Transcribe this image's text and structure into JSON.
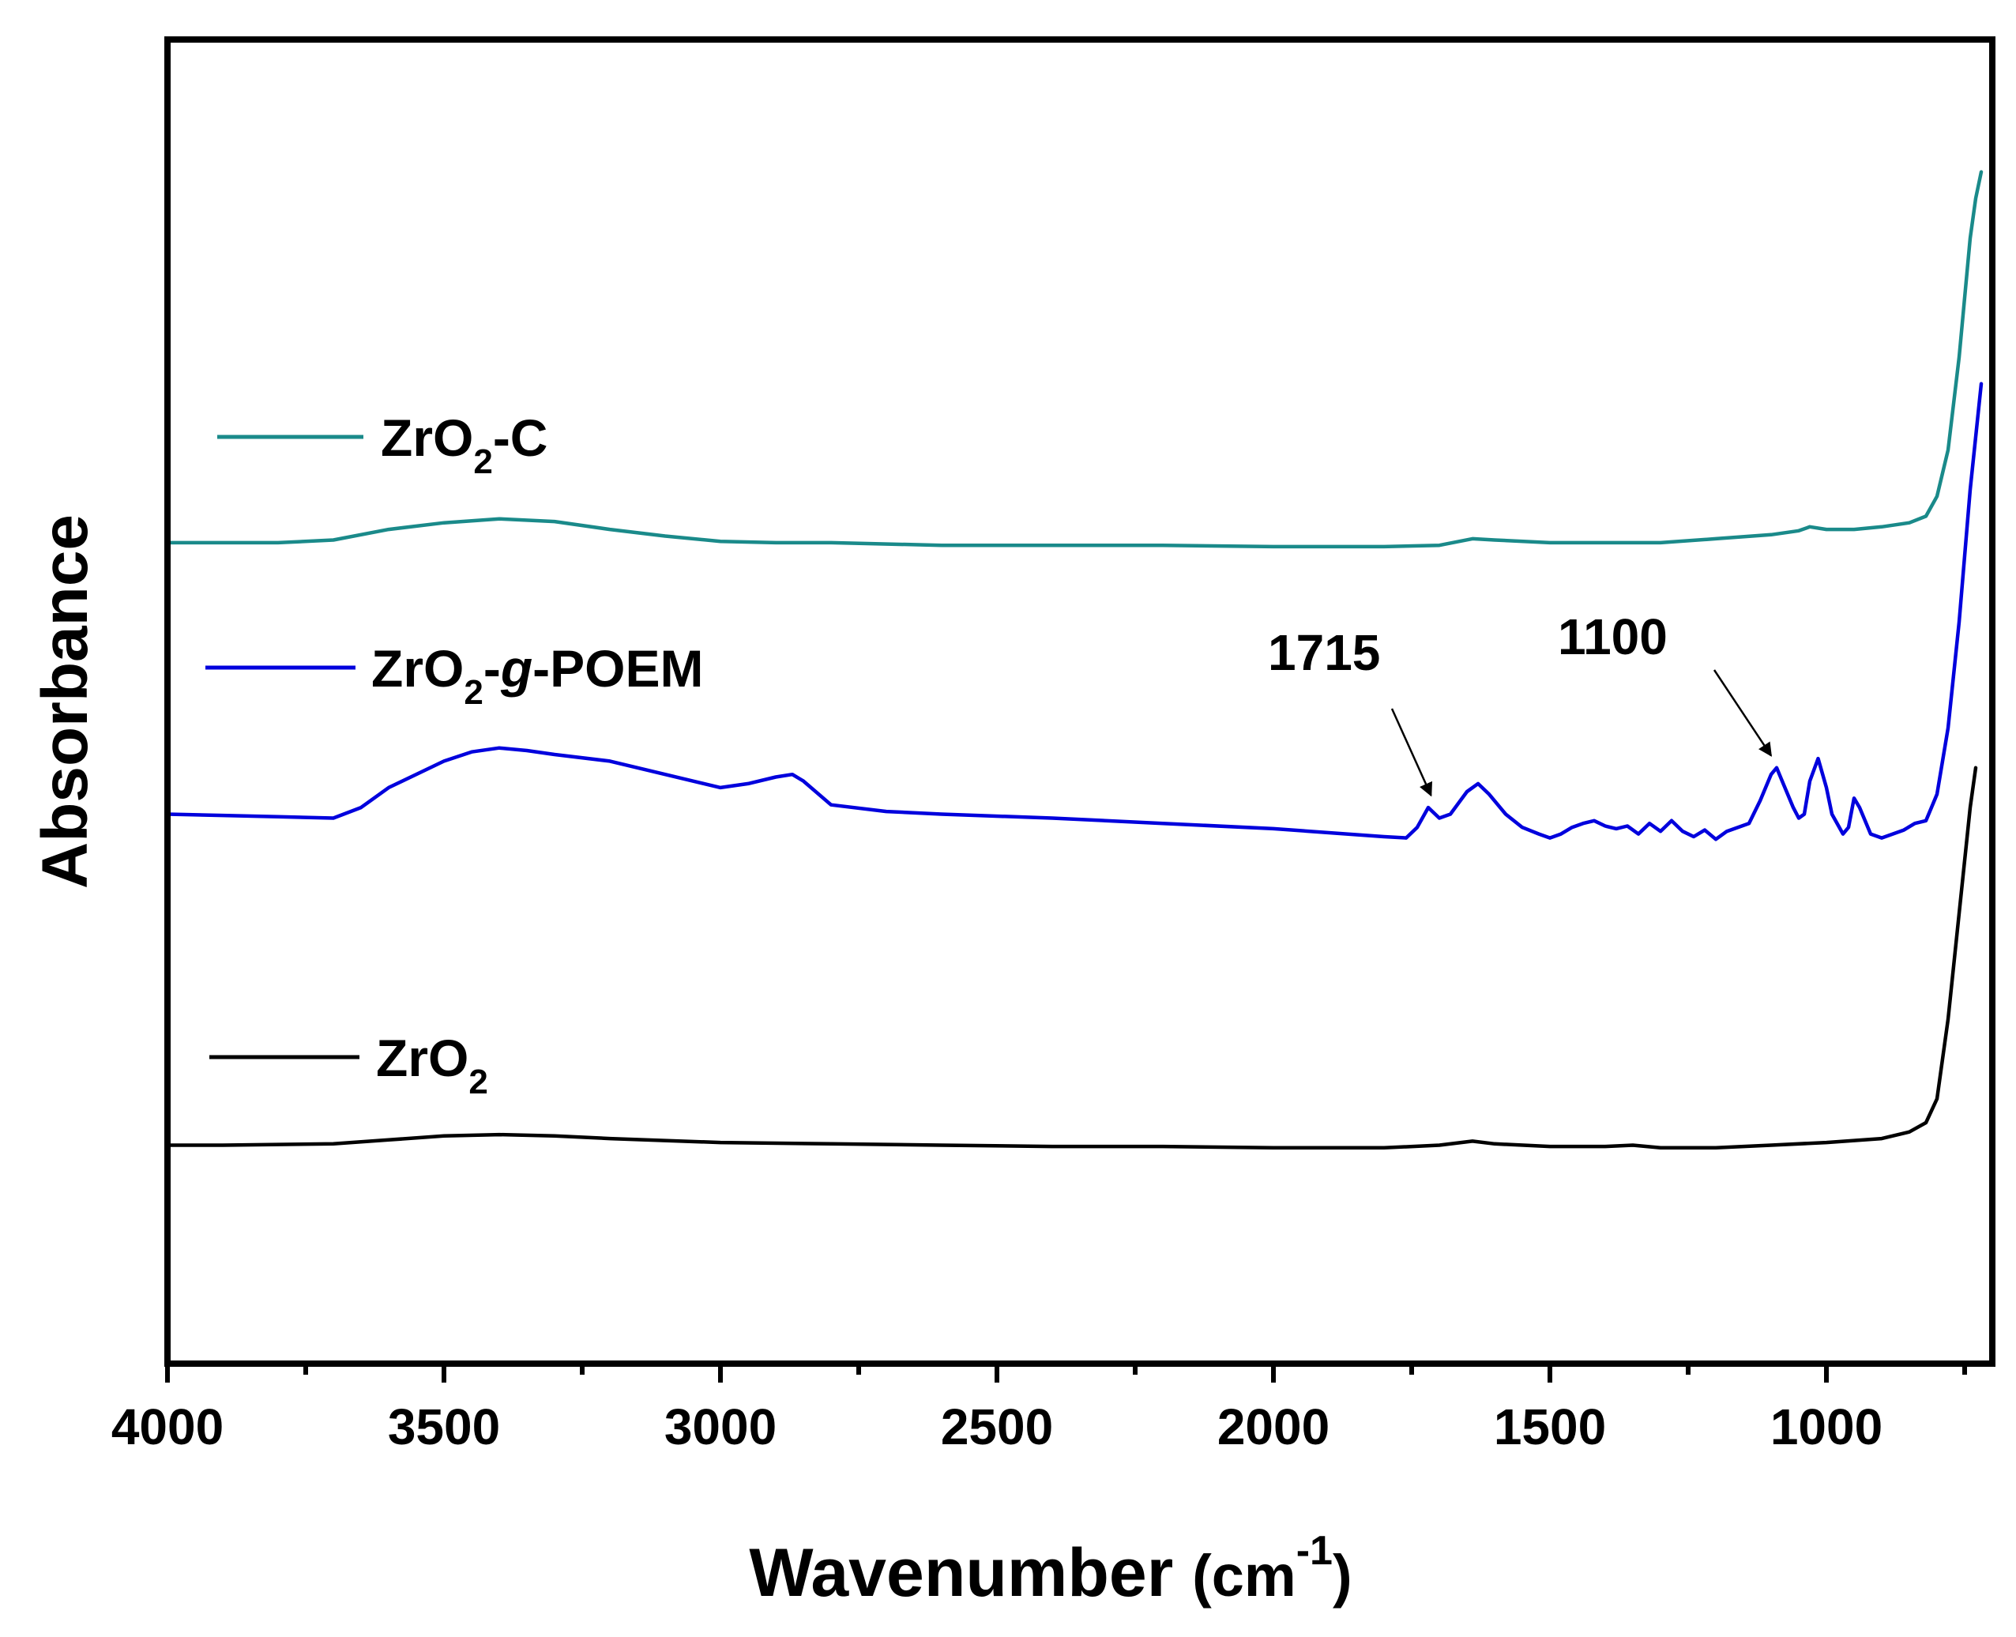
{
  "chart_data": {
    "type": "line",
    "title": "",
    "xlabel": "Wavenumber",
    "xlabel_unit": "(cm",
    "xlabel_unit_exp": "-1",
    "xlabel_unit_close": ")",
    "ylabel": "Absorbance",
    "xlim": [
      4000,
      700
    ],
    "ylim": [
      0,
      10
    ],
    "x_ticks": [
      "4000",
      "3500",
      "3000",
      "2500",
      "2000",
      "1500",
      "1000"
    ],
    "x_tick_values": [
      4000,
      3500,
      3000,
      2500,
      2000,
      1500,
      1000
    ],
    "y_ticks_shown": false,
    "legend_placement": "left, beside each curve",
    "series": [
      {
        "name": "ZrO2-C",
        "legend": {
          "base": "ZrO",
          "sub": "2",
          "suffix": "-C"
        },
        "color": "#1a8a8a",
        "points": [
          [
            4000,
            6.2
          ],
          [
            3900,
            6.2
          ],
          [
            3800,
            6.2
          ],
          [
            3700,
            6.22
          ],
          [
            3600,
            6.3
          ],
          [
            3500,
            6.35
          ],
          [
            3400,
            6.38
          ],
          [
            3300,
            6.36
          ],
          [
            3200,
            6.3
          ],
          [
            3100,
            6.25
          ],
          [
            3000,
            6.21
          ],
          [
            2900,
            6.2
          ],
          [
            2800,
            6.2
          ],
          [
            2600,
            6.18
          ],
          [
            2400,
            6.18
          ],
          [
            2200,
            6.18
          ],
          [
            2000,
            6.17
          ],
          [
            1800,
            6.17
          ],
          [
            1700,
            6.18
          ],
          [
            1640,
            6.23
          ],
          [
            1600,
            6.22
          ],
          [
            1500,
            6.2
          ],
          [
            1400,
            6.2
          ],
          [
            1300,
            6.2
          ],
          [
            1200,
            6.23
          ],
          [
            1100,
            6.26
          ],
          [
            1050,
            6.29
          ],
          [
            1030,
            6.32
          ],
          [
            1000,
            6.3
          ],
          [
            950,
            6.3
          ],
          [
            900,
            6.32
          ],
          [
            850,
            6.35
          ],
          [
            820,
            6.4
          ],
          [
            800,
            6.55
          ],
          [
            780,
            6.9
          ],
          [
            760,
            7.6
          ],
          [
            740,
            8.5
          ],
          [
            730,
            8.8
          ],
          [
            720,
            9.0
          ]
        ]
      },
      {
        "name": "ZrO2-g-POEM",
        "legend": {
          "base": "ZrO",
          "sub": "2",
          "mid": "-",
          "italic": "g",
          "suffix": "-POEM"
        },
        "color": "#0000dd",
        "points": [
          [
            4000,
            4.15
          ],
          [
            3900,
            4.14
          ],
          [
            3800,
            4.13
          ],
          [
            3700,
            4.12
          ],
          [
            3650,
            4.2
          ],
          [
            3600,
            4.35
          ],
          [
            3500,
            4.55
          ],
          [
            3450,
            4.62
          ],
          [
            3400,
            4.65
          ],
          [
            3350,
            4.63
          ],
          [
            3300,
            4.6
          ],
          [
            3200,
            4.55
          ],
          [
            3100,
            4.45
          ],
          [
            3000,
            4.35
          ],
          [
            2950,
            4.38
          ],
          [
            2900,
            4.43
          ],
          [
            2870,
            4.45
          ],
          [
            2850,
            4.4
          ],
          [
            2800,
            4.22
          ],
          [
            2700,
            4.17
          ],
          [
            2600,
            4.15
          ],
          [
            2400,
            4.12
          ],
          [
            2200,
            4.08
          ],
          [
            2000,
            4.04
          ],
          [
            1800,
            3.98
          ],
          [
            1760,
            3.97
          ],
          [
            1740,
            4.05
          ],
          [
            1720,
            4.2
          ],
          [
            1700,
            4.12
          ],
          [
            1680,
            4.15
          ],
          [
            1650,
            4.32
          ],
          [
            1630,
            4.38
          ],
          [
            1610,
            4.3
          ],
          [
            1580,
            4.15
          ],
          [
            1550,
            4.05
          ],
          [
            1520,
            4.0
          ],
          [
            1500,
            3.97
          ],
          [
            1480,
            4.0
          ],
          [
            1460,
            4.05
          ],
          [
            1440,
            4.08
          ],
          [
            1420,
            4.1
          ],
          [
            1400,
            4.06
          ],
          [
            1380,
            4.04
          ],
          [
            1360,
            4.06
          ],
          [
            1340,
            4.0
          ],
          [
            1320,
            4.08
          ],
          [
            1300,
            4.02
          ],
          [
            1280,
            4.1
          ],
          [
            1260,
            4.02
          ],
          [
            1240,
            3.98
          ],
          [
            1220,
            4.03
          ],
          [
            1200,
            3.96
          ],
          [
            1180,
            4.02
          ],
          [
            1160,
            4.05
          ],
          [
            1140,
            4.08
          ],
          [
            1120,
            4.25
          ],
          [
            1100,
            4.45
          ],
          [
            1090,
            4.5
          ],
          [
            1080,
            4.4
          ],
          [
            1060,
            4.2
          ],
          [
            1050,
            4.12
          ],
          [
            1040,
            4.15
          ],
          [
            1030,
            4.4
          ],
          [
            1015,
            4.57
          ],
          [
            1000,
            4.35
          ],
          [
            990,
            4.15
          ],
          [
            970,
            4.0
          ],
          [
            960,
            4.05
          ],
          [
            950,
            4.27
          ],
          [
            940,
            4.2
          ],
          [
            920,
            4.0
          ],
          [
            900,
            3.97
          ],
          [
            880,
            4.0
          ],
          [
            860,
            4.03
          ],
          [
            840,
            4.08
          ],
          [
            820,
            4.1
          ],
          [
            800,
            4.3
          ],
          [
            780,
            4.8
          ],
          [
            760,
            5.6
          ],
          [
            740,
            6.6
          ],
          [
            720,
            7.4
          ]
        ]
      },
      {
        "name": "ZrO2",
        "legend": {
          "base": "ZrO",
          "sub": "2",
          "suffix": ""
        },
        "color": "#000000",
        "points": [
          [
            4000,
            1.65
          ],
          [
            3900,
            1.65
          ],
          [
            3700,
            1.66
          ],
          [
            3600,
            1.69
          ],
          [
            3500,
            1.72
          ],
          [
            3400,
            1.73
          ],
          [
            3300,
            1.72
          ],
          [
            3200,
            1.7
          ],
          [
            3000,
            1.67
          ],
          [
            2800,
            1.66
          ],
          [
            2600,
            1.65
          ],
          [
            2400,
            1.64
          ],
          [
            2200,
            1.64
          ],
          [
            2000,
            1.63
          ],
          [
            1800,
            1.63
          ],
          [
            1700,
            1.65
          ],
          [
            1640,
            1.68
          ],
          [
            1600,
            1.66
          ],
          [
            1500,
            1.64
          ],
          [
            1400,
            1.64
          ],
          [
            1350,
            1.65
          ],
          [
            1300,
            1.63
          ],
          [
            1200,
            1.63
          ],
          [
            1100,
            1.65
          ],
          [
            1000,
            1.67
          ],
          [
            900,
            1.7
          ],
          [
            850,
            1.75
          ],
          [
            820,
            1.82
          ],
          [
            800,
            2.0
          ],
          [
            780,
            2.6
          ],
          [
            760,
            3.4
          ],
          [
            740,
            4.2
          ],
          [
            730,
            4.5
          ]
        ]
      }
    ],
    "annotations": [
      {
        "text": "1715",
        "arrow_to": {
          "x": 1715,
          "y": 4.22
        }
      },
      {
        "text": "1100",
        "arrow_to": {
          "x": 1100,
          "y": 4.52
        }
      }
    ]
  }
}
